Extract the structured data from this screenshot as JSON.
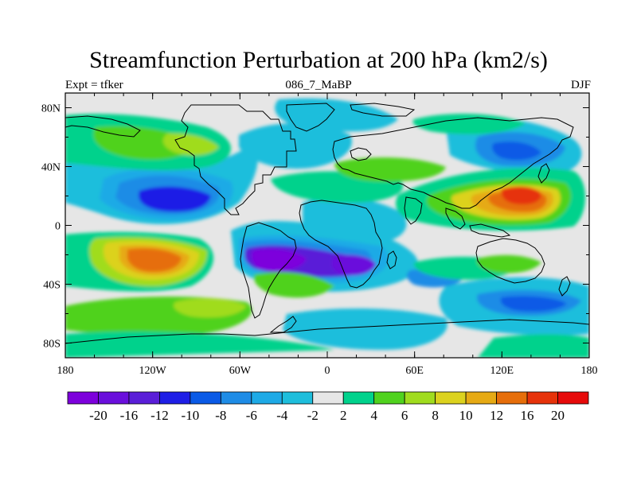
{
  "title": "Streamfunction Perturbation at 200 hPa (km2/s)",
  "subtitle_left": "Expt = tfker",
  "subtitle_center": "086_7_MaBP",
  "subtitle_right": "DJF",
  "map": {
    "projection": "cylindrical-equidistant",
    "lon_range": [
      -180,
      180
    ],
    "lat_range": [
      -90,
      90
    ],
    "x_tick_labels": [
      "180",
      "120W",
      "60W",
      "0",
      "60E",
      "120E",
      "180"
    ],
    "y_tick_labels": [
      "80N",
      "40N",
      "0",
      "40S",
      "80S"
    ],
    "coastlines": "coarse-grid continent outlines"
  },
  "colorbar": {
    "labels": [
      "-20",
      "-16",
      "-12",
      "-10",
      "-8",
      "-6",
      "-4",
      "-2",
      "2",
      "4",
      "6",
      "8",
      "10",
      "12",
      "16",
      "20"
    ],
    "colors": [
      "#7d00dc",
      "#6a0fdc",
      "#5a1ed8",
      "#1e1ee6",
      "#0a5ae6",
      "#1e8ce6",
      "#1eaae6",
      "#1ebedc",
      "#e6e6e6",
      "#00d28c",
      "#50d21e",
      "#a0dc1e",
      "#dcd21e",
      "#e6aa14",
      "#e66e0a",
      "#e6320a",
      "#e60a0a"
    ]
  },
  "anomalies": [
    {
      "name": "north-pacific-positive",
      "lon": -160,
      "lat": 50,
      "level": "4"
    },
    {
      "name": "pacific-tropical-negative",
      "lon": -110,
      "lat": 18,
      "level": "-10"
    },
    {
      "name": "south-pacific-positive",
      "lon": -130,
      "lat": -28,
      "level": "12"
    },
    {
      "name": "south-atlantic-negative",
      "lon": -40,
      "lat": -25,
      "level": "-20"
    },
    {
      "name": "south-africa-negative",
      "lon": 25,
      "lat": -28,
      "level": "-16"
    },
    {
      "name": "east-asia-positive",
      "lon": 130,
      "lat": 22,
      "level": "16"
    },
    {
      "name": "north-asia-negative",
      "lon": 125,
      "lat": 50,
      "level": "-8"
    },
    {
      "name": "southern-ocean-negative",
      "lon": 120,
      "lat": -52,
      "level": "-8"
    }
  ]
}
